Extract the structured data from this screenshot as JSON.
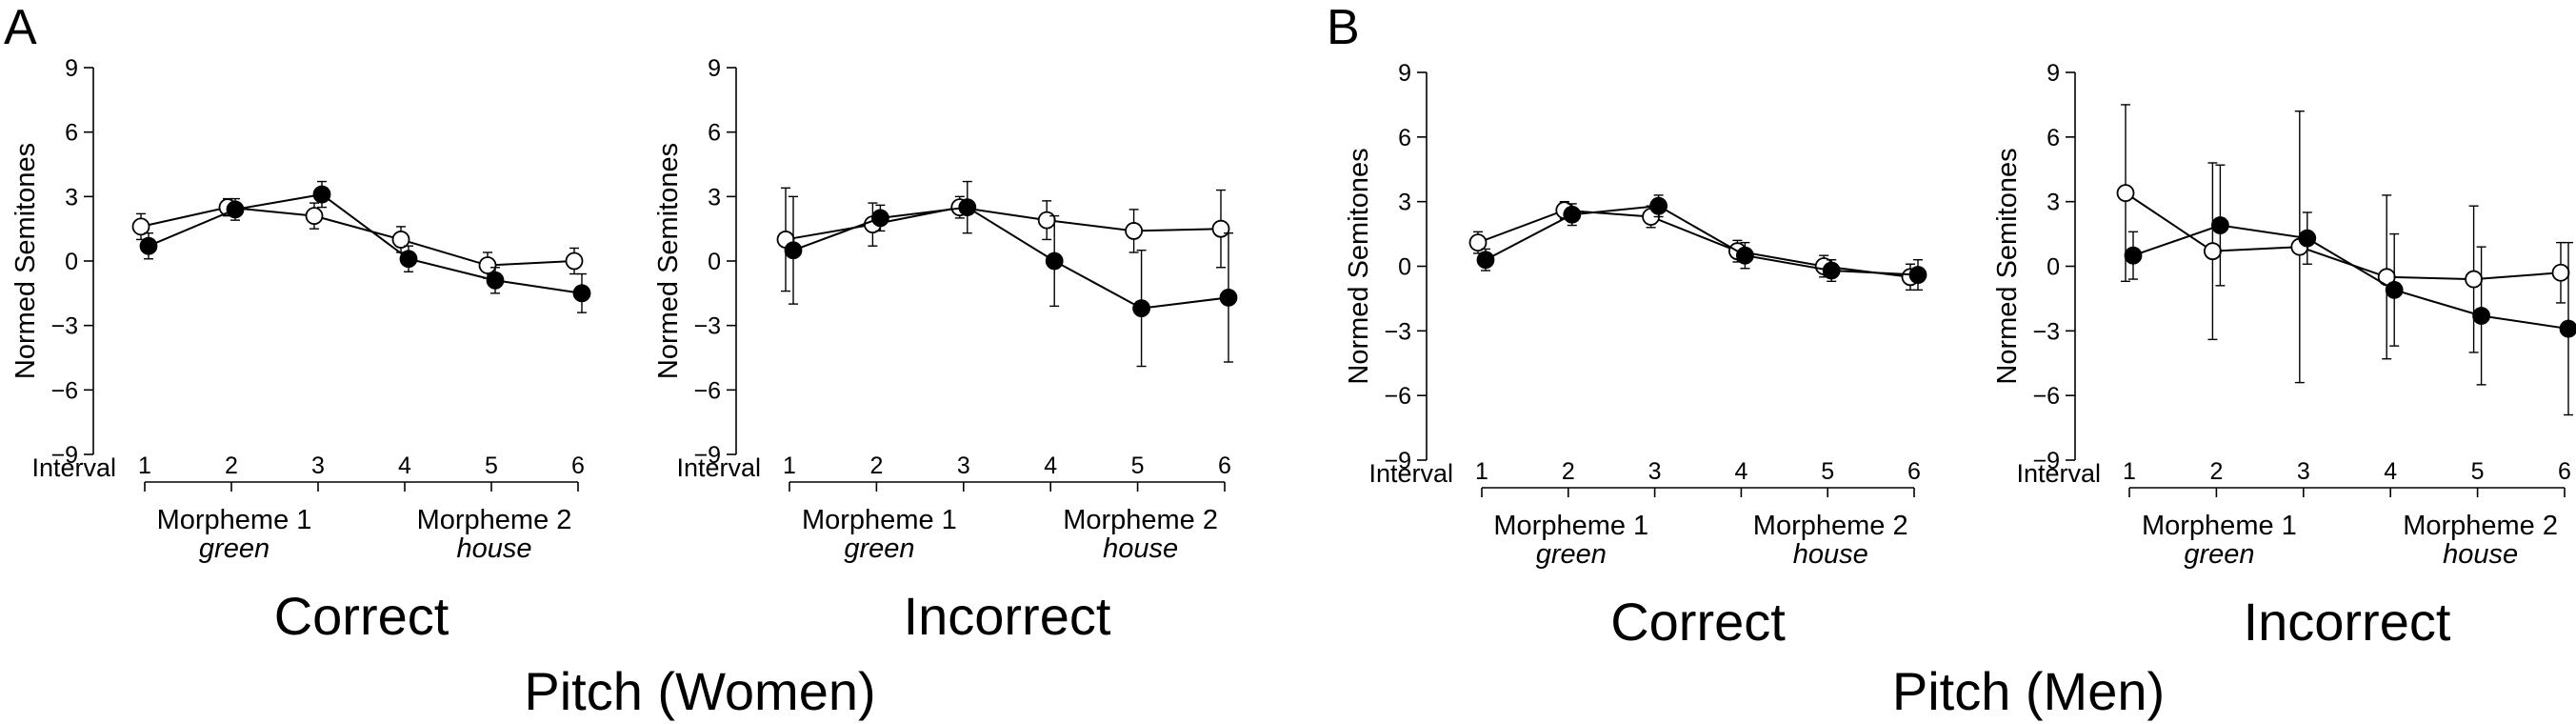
{
  "figure": {
    "panels": [
      {
        "letter": "A",
        "group_title": "Pitch (Women)"
      },
      {
        "letter": "B",
        "group_title": "Pitch (Men)"
      }
    ]
  },
  "chart_data": [
    {
      "type": "line",
      "panel": "A",
      "title": "Correct",
      "xlabel": "Interval",
      "ylabel": "Normed Semitones",
      "x": [
        1,
        2,
        3,
        4,
        5,
        6
      ],
      "ylim": [
        -9,
        9
      ],
      "yticks": [
        9,
        6,
        3,
        0,
        -3,
        -6,
        -9
      ],
      "morpheme_labels": [
        {
          "name": "Morpheme 1",
          "word": "green"
        },
        {
          "name": "Morpheme 2",
          "word": "house"
        }
      ],
      "series": [
        {
          "marker": "open",
          "values": [
            1.6,
            2.5,
            2.1,
            1.0,
            -0.2,
            0.0
          ],
          "error": [
            0.6,
            0.4,
            0.6,
            0.6,
            0.6,
            0.6
          ]
        },
        {
          "marker": "filled",
          "values": [
            0.7,
            2.4,
            3.1,
            0.1,
            -0.9,
            -1.5
          ],
          "error": [
            0.6,
            0.5,
            0.6,
            0.6,
            0.6,
            0.9
          ]
        }
      ]
    },
    {
      "type": "line",
      "panel": "A",
      "title": "Incorrect",
      "xlabel": "Interval",
      "ylabel": "Normed Semitones",
      "x": [
        1,
        2,
        3,
        4,
        5,
        6
      ],
      "ylim": [
        -9,
        9
      ],
      "yticks": [
        9,
        6,
        3,
        0,
        -3,
        -6,
        -9
      ],
      "morpheme_labels": [
        {
          "name": "Morpheme 1",
          "word": "green"
        },
        {
          "name": "Morpheme 2",
          "word": "house"
        }
      ],
      "series": [
        {
          "marker": "open",
          "values": [
            1.0,
            1.7,
            2.5,
            1.9,
            1.4,
            1.5
          ],
          "error": [
            2.4,
            1.0,
            0.5,
            0.9,
            1.0,
            1.8
          ]
        },
        {
          "marker": "filled",
          "values": [
            0.5,
            2.0,
            2.5,
            0.0,
            -2.2,
            -1.7
          ],
          "error": [
            2.5,
            0.6,
            1.2,
            2.1,
            2.7,
            3.0
          ]
        }
      ]
    },
    {
      "type": "line",
      "panel": "B",
      "title": "Correct",
      "xlabel": "Interval",
      "ylabel": "Normed Semitones",
      "x": [
        1,
        2,
        3,
        4,
        5,
        6
      ],
      "ylim": [
        -9,
        9
      ],
      "yticks": [
        9,
        6,
        3,
        0,
        -3,
        -6,
        -9
      ],
      "morpheme_labels": [
        {
          "name": "Morpheme 1",
          "word": "green"
        },
        {
          "name": "Morpheme 2",
          "word": "house"
        }
      ],
      "series": [
        {
          "marker": "open",
          "values": [
            1.1,
            2.6,
            2.3,
            0.7,
            0.0,
            -0.5
          ],
          "error": [
            0.5,
            0.4,
            0.5,
            0.5,
            0.5,
            0.6
          ]
        },
        {
          "marker": "filled",
          "values": [
            0.3,
            2.4,
            2.8,
            0.5,
            -0.2,
            -0.4
          ],
          "error": [
            0.5,
            0.5,
            0.5,
            0.6,
            0.5,
            0.7
          ]
        }
      ]
    },
    {
      "type": "line",
      "panel": "B",
      "title": "Incorrect",
      "xlabel": "Interval",
      "ylabel": "Normed Semitones",
      "x": [
        1,
        2,
        3,
        4,
        5,
        6
      ],
      "ylim": [
        -9,
        9
      ],
      "yticks": [
        9,
        6,
        3,
        0,
        -3,
        -6,
        -9
      ],
      "morpheme_labels": [
        {
          "name": "Morpheme 1",
          "word": "green"
        },
        {
          "name": "Morpheme 2",
          "word": "house"
        }
      ],
      "series": [
        {
          "marker": "open",
          "values": [
            3.4,
            0.7,
            0.9,
            -0.5,
            -0.6,
            -0.3
          ],
          "error": [
            4.1,
            4.1,
            6.3,
            3.8,
            3.4,
            1.4
          ]
        },
        {
          "marker": "filled",
          "values": [
            0.5,
            1.9,
            1.3,
            -1.1,
            -2.3,
            -2.9
          ],
          "error": [
            1.1,
            2.8,
            1.2,
            2.6,
            3.2,
            4.0
          ]
        }
      ]
    }
  ]
}
